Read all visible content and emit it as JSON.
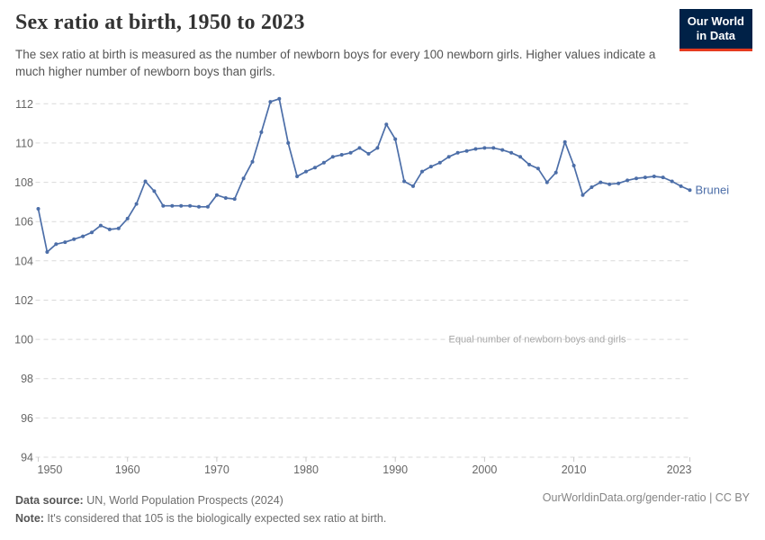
{
  "header": {
    "title": "Sex ratio at birth, 1950 to 2023",
    "subtitle": "The sex ratio at birth is measured as the number of newborn boys for every 100 newborn girls. Higher values indicate a much higher number of newborn boys than girls.",
    "logo": {
      "line1": "Our World",
      "line2": "in Data",
      "bg_color": "#002147",
      "accent_color": "#e63a1f"
    }
  },
  "chart_data": {
    "type": "line",
    "title": "Sex ratio at birth, 1950 to 2023",
    "entity": "Brunei",
    "series": [
      {
        "name": "Brunei",
        "x": [
          1950,
          1951,
          1952,
          1953,
          1954,
          1955,
          1956,
          1957,
          1958,
          1959,
          1960,
          1961,
          1962,
          1963,
          1964,
          1965,
          1966,
          1967,
          1968,
          1969,
          1970,
          1971,
          1972,
          1973,
          1974,
          1975,
          1976,
          1977,
          1978,
          1979,
          1980,
          1981,
          1982,
          1983,
          1984,
          1985,
          1986,
          1987,
          1988,
          1989,
          1990,
          1991,
          1992,
          1993,
          1994,
          1995,
          1996,
          1997,
          1998,
          1999,
          2000,
          2001,
          2002,
          2003,
          2004,
          2005,
          2006,
          2007,
          2008,
          2009,
          2010,
          2011,
          2012,
          2013,
          2014,
          2015,
          2016,
          2017,
          2018,
          2019,
          2020,
          2021,
          2022,
          2023
        ],
        "values": [
          106.65,
          104.45,
          104.85,
          104.95,
          105.1,
          105.25,
          105.45,
          105.8,
          105.6,
          105.65,
          106.15,
          106.9,
          108.05,
          107.55,
          106.8,
          106.8,
          106.8,
          106.8,
          106.75,
          106.75,
          107.35,
          107.2,
          107.15,
          108.2,
          109.05,
          110.55,
          112.1,
          112.25,
          110.0,
          108.3,
          108.55,
          108.75,
          109.0,
          109.3,
          109.4,
          109.5,
          109.75,
          109.45,
          109.75,
          110.95,
          110.2,
          108.05,
          107.8,
          108.55,
          108.8,
          109.0,
          109.3,
          109.5,
          109.6,
          109.7,
          109.75,
          109.75,
          109.65,
          109.5,
          109.3,
          108.9,
          108.7,
          108.0,
          108.5,
          110.05,
          108.85,
          107.35,
          107.75,
          108.0,
          107.9,
          107.95,
          108.1,
          108.2,
          108.25,
          108.3,
          108.25,
          108.05,
          107.8,
          107.6
        ]
      }
    ],
    "xlabel": "",
    "ylabel": "",
    "ylim": [
      94,
      113
    ],
    "yticks": [
      94,
      96,
      98,
      100,
      102,
      104,
      106,
      108,
      110,
      112
    ],
    "xticks": [
      1950,
      1960,
      1970,
      1980,
      1990,
      2000,
      2010,
      2023
    ],
    "annotation": {
      "text": "Equal number of newborn boys and girls",
      "y": 100
    },
    "line_color": "#4C6EA8",
    "grid": true,
    "legend_position": "end-of-line-label"
  },
  "footer": {
    "source_label": "Data source:",
    "source_text": " UN, World Population Prospects (2024)",
    "note_label": "Note:",
    "note_text": " It's considered that 105 is the biologically expected sex ratio at birth.",
    "url_text": "OurWorldinData.org/gender-ratio | CC BY"
  }
}
